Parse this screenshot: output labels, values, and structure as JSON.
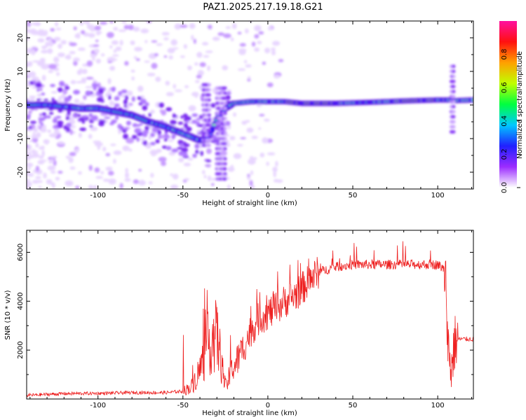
{
  "page": {
    "title": "PAZ1.2025.217.19.18.G21"
  },
  "chart_data": [
    {
      "type": "heatmap",
      "id": "spectrogram",
      "xlabel": "Height of straight line (km)",
      "ylabel": "Frequency (Hz)",
      "xlim": [
        -142,
        121
      ],
      "ylim": [
        -25,
        25
      ],
      "xticks": [
        -100,
        -50,
        0,
        50,
        100
      ],
      "yticks": [
        -20,
        -10,
        0,
        10,
        20
      ],
      "ridge": {
        "x": [
          -142,
          -130,
          -120,
          -110,
          -100,
          -90,
          -80,
          -70,
          -60,
          -50,
          -40,
          -35,
          -30,
          -25,
          -20,
          -10,
          0,
          10,
          20,
          40,
          60,
          80,
          100,
          106,
          110,
          121
        ],
        "y": [
          0,
          0,
          -0.5,
          -1,
          -1,
          -2,
          -3,
          -5,
          -6.5,
          -8.5,
          -10.5,
          -10,
          -4,
          -1,
          0.5,
          1,
          1,
          1,
          0.5,
          0.5,
          0.8,
          1.2,
          1.5,
          1.5,
          1.3,
          1.5
        ]
      },
      "colorbar": {
        "label": "Normalized spectral amplitude",
        "ticks": [
          "0.0",
          "0.2",
          "0.4",
          "0.6",
          "0.8"
        ],
        "range": [
          0,
          1
        ],
        "colors": [
          "#ffffff",
          "#9b2cff",
          "#2020ff",
          "#00c8ff",
          "#00ff40",
          "#c0ff00",
          "#ffa000",
          "#ff1010",
          "#ff10a0"
        ]
      }
    },
    {
      "type": "line",
      "id": "snr",
      "xlabel": "Height of straight line (km)",
      "ylabel": "SNR (10 * v/v)",
      "xlim": [
        -142,
        121
      ],
      "ylim": [
        0,
        6900
      ],
      "xticks": [
        -100,
        -50,
        0,
        50,
        100
      ],
      "yticks": [
        2000,
        4000,
        6000
      ],
      "color": "#ee2222",
      "envelope": {
        "x": [
          -142,
          -120,
          -100,
          -80,
          -60,
          -50,
          -45,
          -40,
          -35,
          -30,
          -25,
          -20,
          -15,
          -10,
          -5,
          0,
          5,
          10,
          15,
          20,
          25,
          30,
          40,
          50,
          60,
          70,
          80,
          90,
          100,
          104,
          105,
          106,
          108,
          110,
          112,
          121
        ],
        "y": [
          150,
          220,
          230,
          260,
          260,
          320,
          500,
          1200,
          2300,
          2600,
          500,
          1300,
          2000,
          2800,
          3300,
          3500,
          3700,
          4000,
          4200,
          4500,
          4900,
          5200,
          5400,
          5500,
          5500,
          5500,
          5500,
          5500,
          5500,
          5300,
          4600,
          2200,
          1200,
          2300,
          2450,
          2450
        ]
      }
    }
  ]
}
